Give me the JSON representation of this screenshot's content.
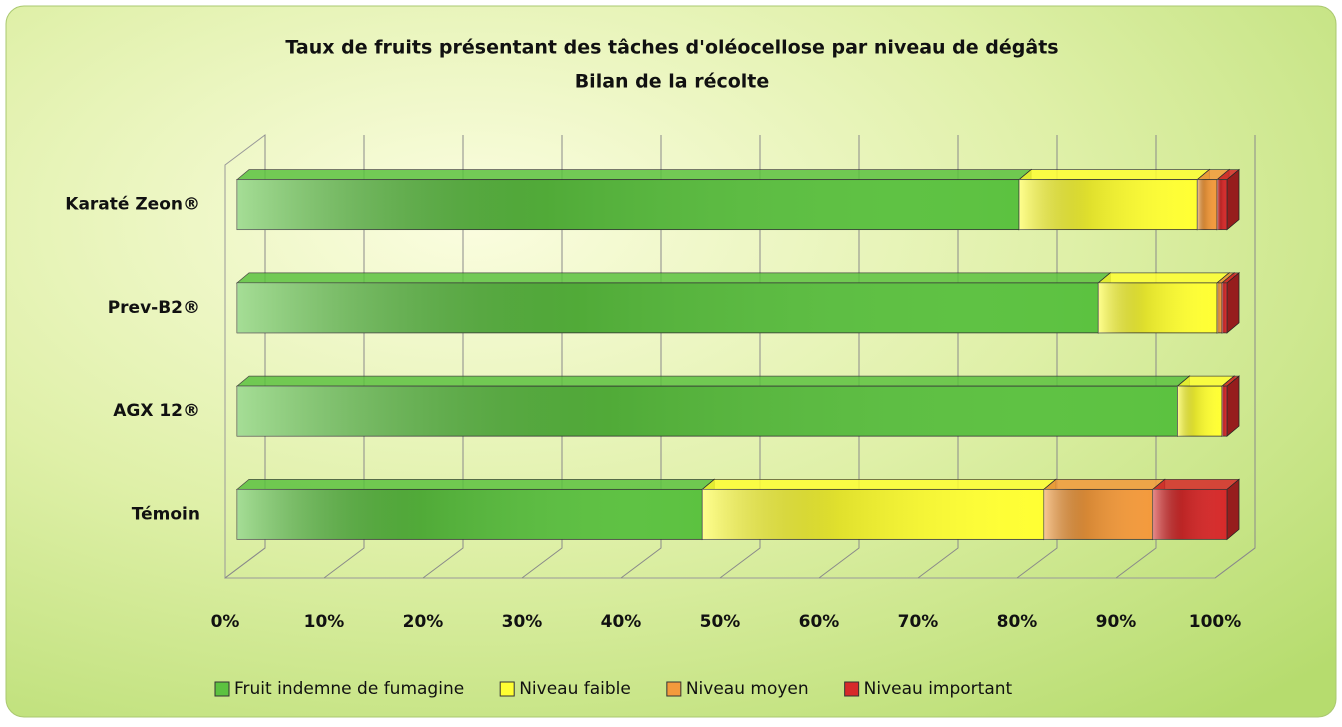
{
  "chart_data": {
    "type": "stacked_barh_3d",
    "title": "Taux de fruits présentant des tâches d'oléocellose par niveau de dégâts",
    "subtitle": "Bilan de la récolte",
    "categories": [
      "Karaté Zeon®",
      "Prev-B2®",
      "AGX 12®",
      "Témoin"
    ],
    "series": [
      {
        "name": "Fruit indemne de fumagine",
        "color": "#5cc240",
        "values": [
          79,
          87,
          95,
          47
        ]
      },
      {
        "name": "Niveau faible",
        "color": "#ffff33",
        "values": [
          18,
          12,
          4.5,
          34.5
        ]
      },
      {
        "name": "Niveau moyen",
        "color": "#f39a3c",
        "values": [
          2,
          0.5,
          0,
          11
        ]
      },
      {
        "name": "Niveau important",
        "color": "#d62a2a",
        "values": [
          1,
          0.5,
          0.5,
          7.5
        ]
      }
    ],
    "xlim": [
      0,
      100
    ],
    "xticks": [
      {
        "value": 0,
        "label": "0%"
      },
      {
        "value": 10,
        "label": "10%"
      },
      {
        "value": 20,
        "label": "20%"
      },
      {
        "value": 30,
        "label": "30%"
      },
      {
        "value": 40,
        "label": "40%"
      },
      {
        "value": 50,
        "label": "50%"
      },
      {
        "value": 60,
        "label": "60%"
      },
      {
        "value": 70,
        "label": "70%"
      },
      {
        "value": 80,
        "label": "80%"
      },
      {
        "value": 90,
        "label": "90%"
      },
      {
        "value": 100,
        "label": "100%"
      }
    ],
    "grid": true,
    "legend": "bottom"
  }
}
